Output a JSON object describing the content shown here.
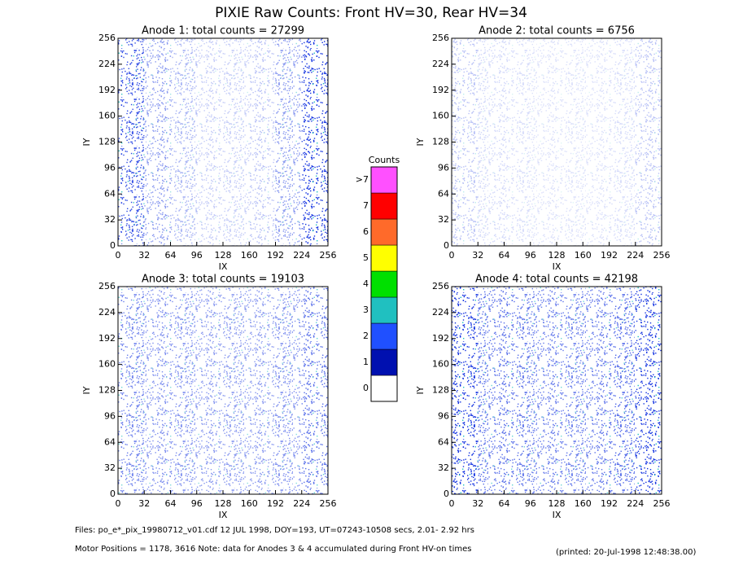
{
  "title": "PIXIE Raw Counts:  Front HV=30, Rear HV=34",
  "chart_data": [
    {
      "type": "heatmap",
      "title": "Anode 1: total counts = 27299",
      "xlabel": "IX",
      "ylabel": "IY",
      "xlim": [
        0,
        256
      ],
      "ylim": [
        0,
        256
      ],
      "xticks": [
        0,
        32,
        64,
        96,
        128,
        160,
        192,
        224,
        256
      ],
      "yticks": [
        0,
        32,
        64,
        96,
        128,
        160,
        192,
        224,
        256
      ],
      "density": [
        0.35,
        0.2,
        0.15,
        0.1,
        0.1,
        0.12,
        0.2,
        0.4
      ]
    },
    {
      "type": "heatmap",
      "title": "Anode 2: total counts = 6756",
      "xlabel": "IX",
      "ylabel": "IY",
      "xlim": [
        0,
        256
      ],
      "ylim": [
        0,
        256
      ],
      "xticks": [
        0,
        32,
        64,
        96,
        128,
        160,
        192,
        224,
        256
      ],
      "yticks": [
        0,
        32,
        64,
        96,
        128,
        160,
        192,
        224,
        256
      ],
      "density": [
        0.12,
        0.08,
        0.07,
        0.06,
        0.06,
        0.06,
        0.07,
        0.12
      ]
    },
    {
      "type": "heatmap",
      "title": "Anode 3: total counts = 19103",
      "xlabel": "IX",
      "ylabel": "IY",
      "xlim": [
        0,
        256
      ],
      "ylim": [
        0,
        256
      ],
      "xticks": [
        0,
        32,
        64,
        96,
        128,
        160,
        192,
        224,
        256
      ],
      "yticks": [
        0,
        32,
        64,
        96,
        128,
        160,
        192,
        224,
        256
      ],
      "density": [
        0.25,
        0.22,
        0.22,
        0.2,
        0.2,
        0.2,
        0.22,
        0.28
      ]
    },
    {
      "type": "heatmap",
      "title": "Anode 4: total counts = 42198",
      "xlabel": "IX",
      "ylabel": "IY",
      "xlim": [
        0,
        256
      ],
      "ylim": [
        0,
        256
      ],
      "xticks": [
        0,
        32,
        64,
        96,
        128,
        160,
        192,
        224,
        256
      ],
      "yticks": [
        0,
        32,
        64,
        96,
        128,
        160,
        192,
        224,
        256
      ],
      "density": [
        0.4,
        0.28,
        0.28,
        0.26,
        0.26,
        0.27,
        0.3,
        0.5
      ]
    }
  ],
  "colorbar": {
    "title": "Counts",
    "labels": [
      "0",
      "1",
      "2",
      "3",
      "4",
      "5",
      "6",
      "7",
      ">7"
    ],
    "colors": [
      "#ffffff",
      "#0010b0",
      "#2050ff",
      "#20c0c0",
      "#00e000",
      "#ffff00",
      "#ff6a2a",
      "#ff0000",
      "#ff50ff"
    ]
  },
  "footer": {
    "line1": "Files: po_e*_pix_19980712_v01.cdf    12 JUL 1998, DOY=193, UT=07243-10508 secs,  2.01- 2.92 hrs",
    "line2": "Motor Positions = 1178, 3616   Note: data for Anodes 3 & 4 accumulated during Front HV-on times",
    "printed": "(printed: 20-Jul-1998 12:48:38.00)"
  }
}
